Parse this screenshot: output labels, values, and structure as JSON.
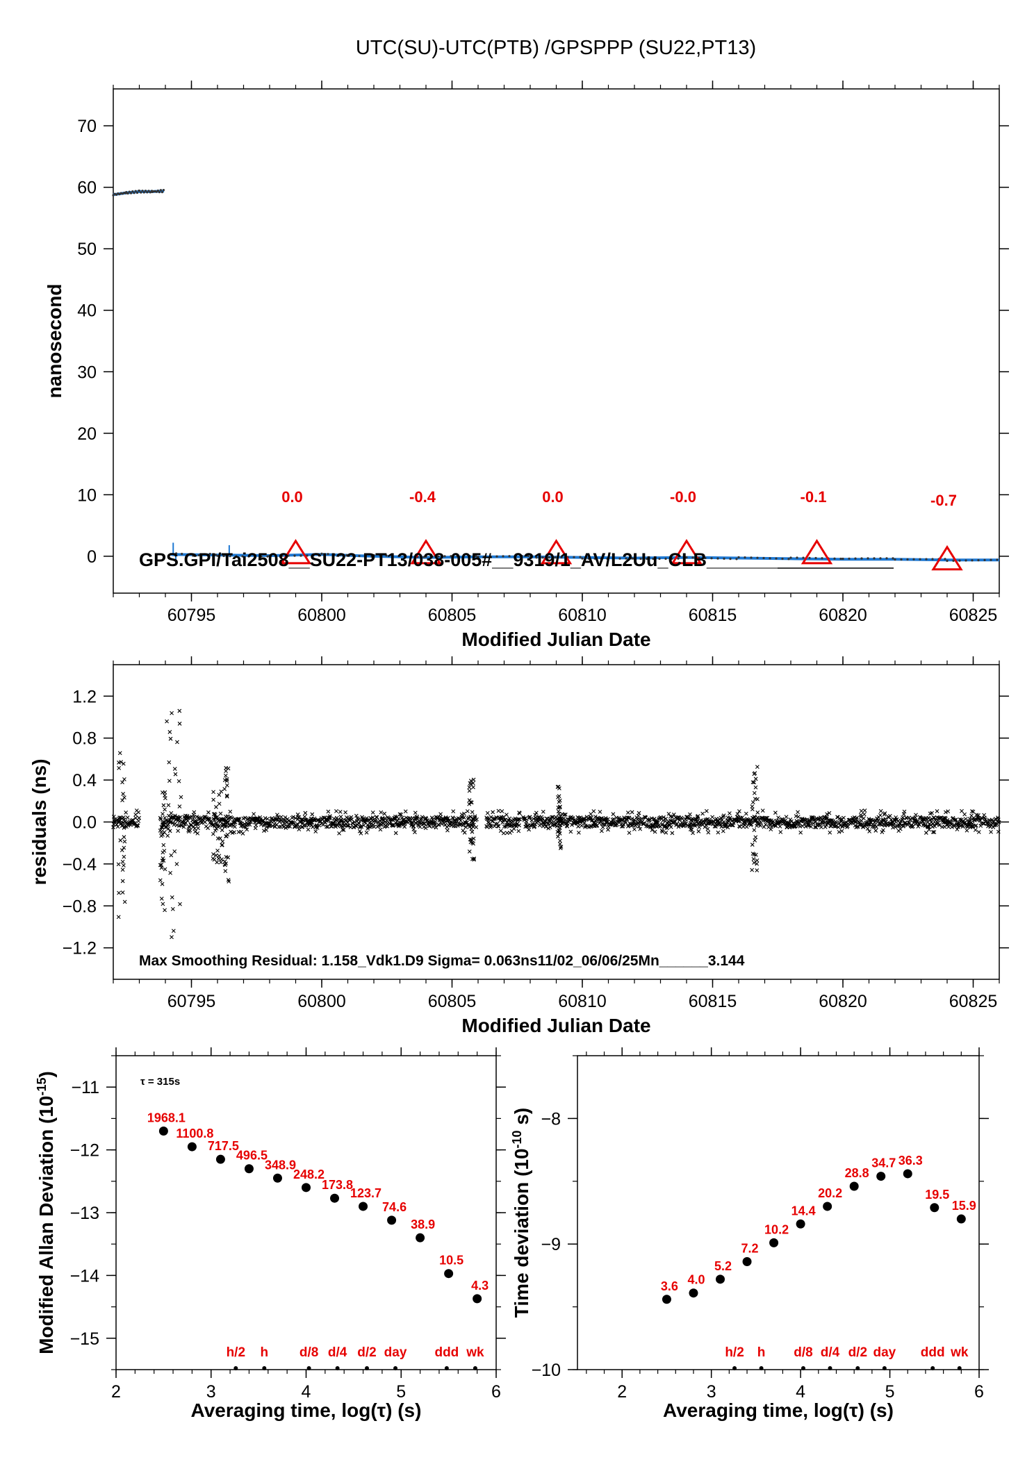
{
  "title": "UTC(SU)-UTC(PTB)  /GPSPPP  (SU22,PT13)",
  "chart_data": [
    {
      "type": "line",
      "xlabel": "Modified Julian Date",
      "ylabel": "nanosecond",
      "xlim": [
        60792,
        60826
      ],
      "ylim": [
        -6,
        76
      ],
      "xticks": [
        60795,
        60800,
        60805,
        60810,
        60815,
        60820,
        60825
      ],
      "yticks": [
        0,
        10,
        20,
        30,
        40,
        50,
        60,
        70
      ],
      "series": [
        {
          "color": "#1e78d2",
          "segments": [
            {
              "x": [
                60792.0,
                60792.5,
                60793.0,
                60793.5,
                60793.95
              ],
              "y": [
                58.8,
                59.1,
                59.3,
                59.3,
                59.4
              ]
            },
            {
              "x": [
                60794.2,
                60796.0,
                60798.0,
                60800.0,
                60802.0,
                60804.0,
                60806.0,
                60808.0,
                60810.0,
                60812.0,
                60814.0,
                60816.0,
                60818.0,
                60820.0,
                60822.0,
                60824.0,
                60826.0
              ],
              "y": [
                0.3,
                0.2,
                0.1,
                0.3,
                0.0,
                -0.2,
                -0.1,
                -0.1,
                -0.2,
                -0.3,
                -0.2,
                -0.3,
                -0.4,
                -0.5,
                -0.5,
                -0.6,
                -0.6
              ]
            }
          ]
        }
      ],
      "markers": {
        "type": "triangle",
        "color": "#e60000",
        "x": [
          60799,
          60804,
          60809,
          60814,
          60819,
          60824
        ],
        "labels": [
          "0.0",
          "-0.4",
          "0.0",
          "-0.0",
          "-0.1",
          "-0.7"
        ]
      },
      "annotation": "GPS.GPI/Tai2508__SU22-PT13/038-005#__9319/1_AV/L2Uu_CLB_________"
    },
    {
      "type": "scatter",
      "xlabel": "Modified Julian Date",
      "ylabel": "residuals (ns)",
      "xlim": [
        60792,
        60826
      ],
      "ylim": [
        -1.5,
        1.5
      ],
      "xticks": [
        60795,
        60800,
        60805,
        60810,
        60815,
        60820,
        60825
      ],
      "yticks": [
        -1.2,
        -0.8,
        -0.4,
        0.0,
        0.4,
        0.8,
        1.2
      ],
      "marker": "x",
      "gaps": [
        [
          60805.95,
          60806.3
        ],
        [
          60807.6,
          60807.72
        ]
      ],
      "bursts": [
        {
          "x": [
            60792.2,
            60792.45
          ],
          "ymin": -1.0,
          "ymax": 0.78
        },
        {
          "x": [
            60793.8,
            60794.0
          ],
          "ymin": -0.9,
          "ymax": 0.3
        },
        {
          "x": [
            60794.05,
            60794.6
          ],
          "ymin": -1.15,
          "ymax": 1.07
        },
        {
          "x": [
            60795.8,
            60796.2
          ],
          "ymin": -0.4,
          "ymax": 0.3
        },
        {
          "x": [
            60796.25,
            60796.45
          ],
          "ymin": -0.62,
          "ymax": 0.55
        },
        {
          "x": [
            60805.65,
            60805.85
          ],
          "ymin": -0.38,
          "ymax": 0.42
        },
        {
          "x": [
            60809.05,
            60809.2
          ],
          "ymin": -0.3,
          "ymax": 0.36
        },
        {
          "x": [
            60816.5,
            60816.72
          ],
          "ymin": -0.48,
          "ymax": 0.6
        }
      ],
      "annotation": "Max Smoothing Residual: 1.158_Vdk1.D9  Sigma= 0.063ns11/02_06/06/25Mn______3.144"
    },
    {
      "type": "scatter",
      "xlabel": "Averaging time, log(τ) (s)",
      "ylabel": "Modified Allan Deviation (10",
      "ylabel_sup": "-15",
      "ylabel_end": ")",
      "xlim": [
        2,
        6
      ],
      "ylim": [
        -15.5,
        -10.5
      ],
      "xticks": [
        2,
        3,
        4,
        5,
        6
      ],
      "yticks": [
        -15,
        -14,
        -13,
        -12,
        -11
      ],
      "tau_note": "τ = 315s",
      "x": [
        2.5,
        2.8,
        3.1,
        3.4,
        3.7,
        4.0,
        4.3,
        4.6,
        4.9,
        5.2,
        5.5,
        5.8
      ],
      "y": [
        -11.7,
        -11.95,
        -12.15,
        -12.3,
        -12.45,
        -12.6,
        -12.77,
        -12.9,
        -13.12,
        -13.4,
        -13.97,
        -14.37
      ],
      "labels": [
        "1968.1",
        "1100.8",
        "717.5",
        "496.5",
        "348.9",
        "248.2",
        "173.8",
        "123.7",
        "74.6",
        "38.9",
        "10.5",
        "4.3"
      ],
      "ref_labels": [
        "h/2",
        "h",
        "d/8",
        "d/4",
        "d/2",
        "day",
        "ddd",
        "wk"
      ],
      "ref_x": [
        3.26,
        3.56,
        4.03,
        4.33,
        4.64,
        4.94,
        5.48,
        5.78
      ]
    },
    {
      "type": "scatter",
      "xlabel": "Averaging time, log(τ) (s)",
      "ylabel": "Time deviation (10",
      "ylabel_sup": "-10",
      "ylabel_end": " s)",
      "xlim": [
        1.5,
        6
      ],
      "ylim": [
        -10,
        -7.5
      ],
      "xticks": [
        2,
        3,
        4,
        5,
        6
      ],
      "yticks": [
        -10,
        -9,
        -8
      ],
      "x": [
        2.5,
        2.8,
        3.1,
        3.4,
        3.7,
        4.0,
        4.3,
        4.6,
        4.9,
        5.2,
        5.5,
        5.8
      ],
      "y": [
        -9.44,
        -9.39,
        -9.28,
        -9.14,
        -8.99,
        -8.84,
        -8.7,
        -8.54,
        -8.46,
        -8.44,
        -8.71,
        -8.8
      ],
      "labels": [
        "3.6",
        "4.0",
        "5.2",
        "7.2",
        "10.2",
        "14.4",
        "20.2",
        "28.8",
        "34.7",
        "36.3",
        "19.5",
        "15.9"
      ],
      "ref_labels": [
        "h/2",
        "h",
        "d/8",
        "d/4",
        "d/2",
        "day",
        "ddd",
        "wk"
      ],
      "ref_x": [
        3.26,
        3.56,
        4.03,
        4.33,
        4.64,
        4.94,
        5.48,
        5.78
      ]
    }
  ]
}
